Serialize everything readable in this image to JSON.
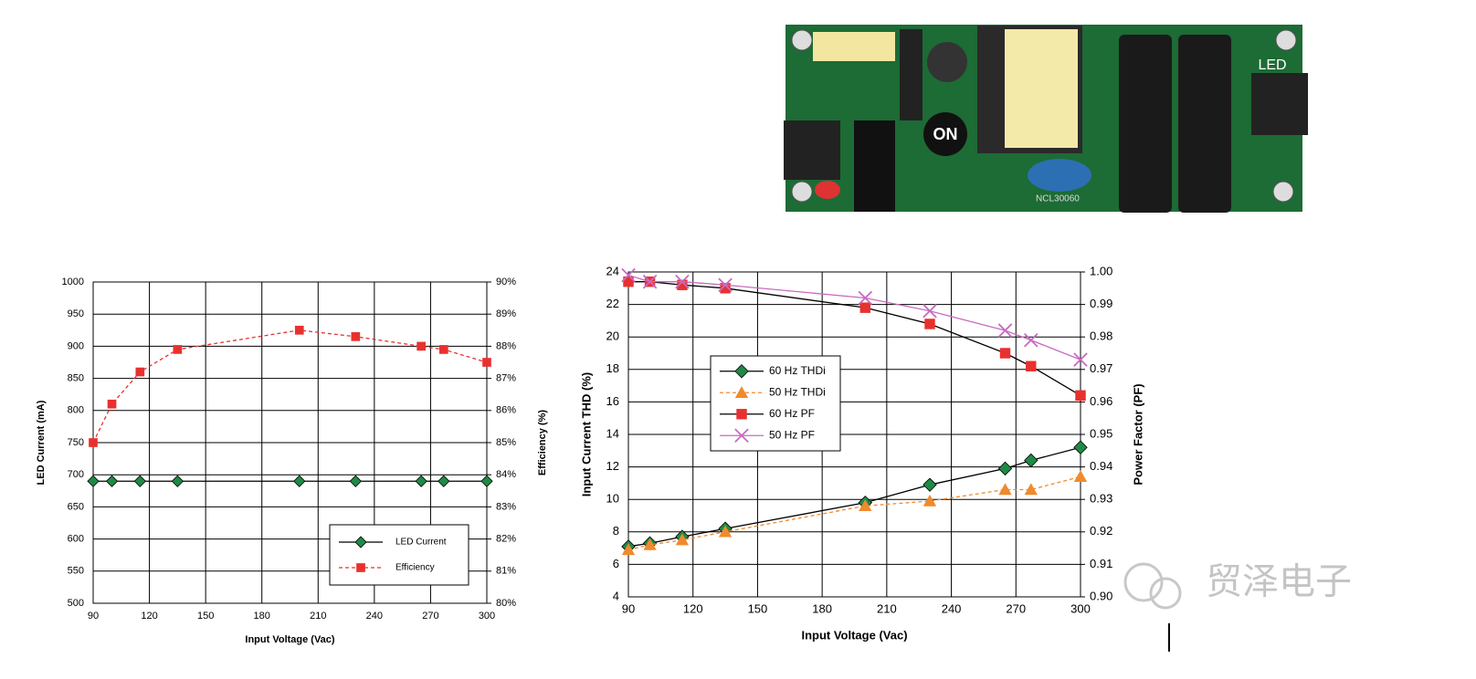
{
  "chart_data": [
    {
      "type": "line",
      "xlabel": "Input Voltage (Vac)",
      "ylabel": "LED Current (mA)",
      "y2label": "Efficiency (%)",
      "x": [
        90,
        100,
        115,
        135,
        200,
        230,
        265,
        277,
        300
      ],
      "xlim": [
        90,
        300
      ],
      "xticks": [
        90,
        120,
        150,
        180,
        210,
        240,
        270,
        300
      ],
      "ylim": [
        500,
        1000
      ],
      "yticks": [
        500,
        550,
        600,
        650,
        700,
        750,
        800,
        850,
        900,
        950,
        1000
      ],
      "y2lim": [
        80,
        90
      ],
      "y2ticks": [
        {
          "value": 80,
          "label": "80%"
        },
        {
          "value": 81,
          "label": "81%"
        },
        {
          "value": 82,
          "label": "82%"
        },
        {
          "value": 83,
          "label": "83%"
        },
        {
          "value": 84,
          "label": "84%"
        },
        {
          "value": 85,
          "label": "85%"
        },
        {
          "value": 86,
          "label": "86%"
        },
        {
          "value": 87,
          "label": "87%"
        },
        {
          "value": 88,
          "label": "88%"
        },
        {
          "value": 89,
          "label": "89%"
        },
        {
          "value": 90,
          "label": "90%"
        }
      ],
      "grid": true,
      "legend": "lower right",
      "series": [
        {
          "name": "LED Current",
          "color": "#1f8a45",
          "line_color": "#000000",
          "marker": "diamond",
          "dashed": false,
          "values": [
            690,
            690,
            690,
            690,
            690,
            690,
            690,
            690,
            690
          ]
        },
        {
          "name": "Efficiency",
          "color": "#e8312f",
          "line_color": "#e8312f",
          "marker": "square",
          "dashed": true,
          "axis": "y2",
          "values": [
            85.0,
            86.2,
            87.2,
            87.9,
            88.5,
            88.3,
            88.0,
            87.9,
            87.5
          ]
        }
      ]
    },
    {
      "type": "line",
      "xlabel": "Input Voltage (Vac)",
      "ylabel": "Input Current THD (%)",
      "y2label": "Power Factor (PF)",
      "x": [
        90,
        100,
        115,
        135,
        200,
        230,
        265,
        277,
        300
      ],
      "xlim": [
        90,
        300
      ],
      "xticks": [
        90,
        120,
        150,
        180,
        210,
        240,
        270,
        300
      ],
      "ylim": [
        4,
        24
      ],
      "yticks": [
        4,
        6,
        8,
        10,
        12,
        14,
        16,
        18,
        20,
        22,
        24
      ],
      "y2lim": [
        0.9,
        1.0
      ],
      "y2ticks": [
        {
          "value": 0.9,
          "label": "0.90"
        },
        0.91,
        0.92,
        0.93,
        0.94,
        0.95,
        0.96,
        0.97,
        0.98,
        0.99,
        {
          "value": 1.0,
          "label": "1.00"
        }
      ],
      "grid": true,
      "legend": "center left",
      "series": [
        {
          "name": "60 Hz THDi",
          "color": "#1f8a45",
          "line_color": "#000000",
          "marker": "diamond",
          "dashed": false,
          "values": [
            7.1,
            7.3,
            7.7,
            8.2,
            9.8,
            10.9,
            11.9,
            12.4,
            13.2
          ]
        },
        {
          "name": "50 Hz THDi",
          "color": "#f08a2c",
          "line_color": "#f08a2c",
          "marker": "triangle",
          "dashed": true,
          "values": [
            6.9,
            7.2,
            7.5,
            8.0,
            9.6,
            9.9,
            10.6,
            10.6,
            11.4
          ]
        },
        {
          "name": "60 Hz PF",
          "color": "#e8312f",
          "line_color": "#000000",
          "marker": "square",
          "dashed": false,
          "axis": "y2",
          "values": [
            0.997,
            0.997,
            0.996,
            0.995,
            0.989,
            0.984,
            0.975,
            0.971,
            0.962
          ]
        },
        {
          "name": "50 Hz PF",
          "color": "#c86ac0",
          "line_color": "#c86ac0",
          "marker": "x",
          "dashed": false,
          "axis": "y2",
          "values": [
            0.999,
            0.997,
            0.997,
            0.996,
            0.992,
            0.988,
            0.982,
            0.979,
            0.973
          ]
        }
      ]
    }
  ],
  "photo": {
    "logo": "ON",
    "connector": "LED",
    "part": "NCL30060"
  },
  "watermark": "贸泽电子"
}
